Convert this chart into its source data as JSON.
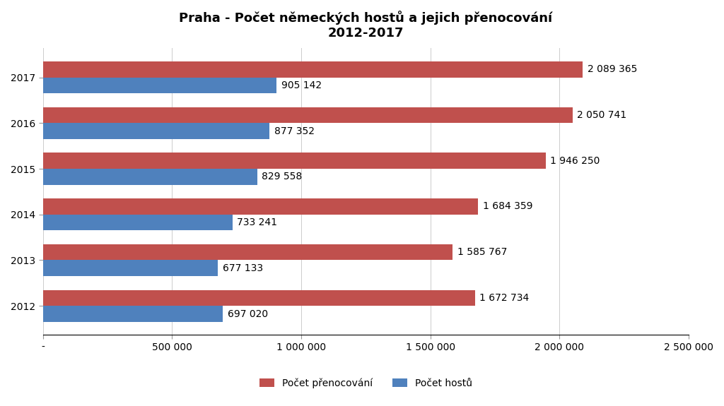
{
  "title_line1": "Praha - Počet německých hostů a jejich přenocování",
  "title_line2": "2012-2017",
  "years": [
    "2017",
    "2016",
    "2015",
    "2014",
    "2013",
    "2012"
  ],
  "prenocovani": [
    2089365,
    2050741,
    1946250,
    1684359,
    1585767,
    1672734
  ],
  "hosti": [
    905142,
    877352,
    829558,
    733241,
    677133,
    697020
  ],
  "color_prenocovani": "#C0504D",
  "color_hosti": "#4F81BD",
  "legend_prenocovani": "Počet přenocování",
  "legend_hosti": "Počet hostů",
  "xlim": [
    0,
    2500000
  ],
  "xticks": [
    0,
    500000,
    1000000,
    1500000,
    2000000,
    2500000
  ],
  "xtick_labels": [
    "-",
    "500 000",
    "1 000 000",
    "1 500 000",
    "2 000 000",
    "2 500 000"
  ],
  "background_color": "#FFFFFF",
  "bar_height": 0.35,
  "title_fontsize": 13,
  "tick_fontsize": 10,
  "label_fontsize": 10,
  "legend_fontsize": 10
}
